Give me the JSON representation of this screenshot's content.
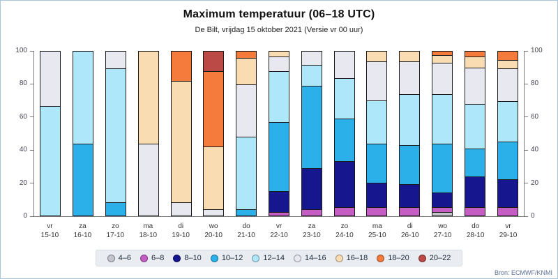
{
  "title": "Maximum temperatuur (06–18 UTC)",
  "subtitle": "De Bilt, vrijdag 15 oktober 2021 (Versie vr 00 uur)",
  "source": "Bron: ECMWF/KNMI",
  "chart_data": {
    "type": "bar",
    "stacked": true,
    "ylim": [
      0,
      100
    ],
    "yticks": [
      0,
      20,
      40,
      60,
      80,
      100
    ],
    "grid": false,
    "legend_position": "bottom",
    "bins": [
      {
        "label": "4–6",
        "color": "#c4c4cc"
      },
      {
        "label": "6–8",
        "color": "#c45ec4"
      },
      {
        "label": "8–10",
        "color": "#16168f"
      },
      {
        "label": "10–12",
        "color": "#2bb0ea"
      },
      {
        "label": "12–14",
        "color": "#aee7fa"
      },
      {
        "label": "14–16",
        "color": "#e8e8f0"
      },
      {
        "label": "16–18",
        "color": "#f9dcb2"
      },
      {
        "label": "18–20",
        "color": "#f47b3c"
      },
      {
        "label": "20–22",
        "color": "#bb4a47"
      }
    ],
    "bars": [
      {
        "day": "vr",
        "date": "15-10",
        "segments": [
          {
            "bin": "12–14",
            "value": 67
          },
          {
            "bin": "14–16",
            "value": 33
          }
        ]
      },
      {
        "day": "za",
        "date": "16-10",
        "segments": [
          {
            "bin": "10–12",
            "value": 44
          },
          {
            "bin": "12–14",
            "value": 56
          }
        ]
      },
      {
        "day": "zo",
        "date": "17-10",
        "segments": [
          {
            "bin": "10–12",
            "value": 8
          },
          {
            "bin": "12–14",
            "value": 82
          },
          {
            "bin": "14–16",
            "value": 10
          }
        ]
      },
      {
        "day": "ma",
        "date": "18-10",
        "segments": [
          {
            "bin": "14–16",
            "value": 44
          },
          {
            "bin": "16–18",
            "value": 56
          }
        ]
      },
      {
        "day": "di",
        "date": "19-10",
        "segments": [
          {
            "bin": "14–16",
            "value": 8
          },
          {
            "bin": "16–18",
            "value": 74
          },
          {
            "bin": "18–20",
            "value": 18
          }
        ]
      },
      {
        "day": "wo",
        "date": "20-10",
        "segments": [
          {
            "bin": "14–16",
            "value": 4
          },
          {
            "bin": "16–18",
            "value": 38
          },
          {
            "bin": "18–20",
            "value": 46
          },
          {
            "bin": "20–22",
            "value": 12
          }
        ]
      },
      {
        "day": "do",
        "date": "21-10",
        "segments": [
          {
            "bin": "10–12",
            "value": 4
          },
          {
            "bin": "12–14",
            "value": 44
          },
          {
            "bin": "14–16",
            "value": 32
          },
          {
            "bin": "16–18",
            "value": 16
          },
          {
            "bin": "18–20",
            "value": 4
          }
        ]
      },
      {
        "day": "vr",
        "date": "22-10",
        "segments": [
          {
            "bin": "6–8",
            "value": 2
          },
          {
            "bin": "8–10",
            "value": 13
          },
          {
            "bin": "10–12",
            "value": 42
          },
          {
            "bin": "12–14",
            "value": 31
          },
          {
            "bin": "14–16",
            "value": 9
          },
          {
            "bin": "16–18",
            "value": 3
          }
        ]
      },
      {
        "day": "za",
        "date": "23-10",
        "segments": [
          {
            "bin": "6–8",
            "value": 4
          },
          {
            "bin": "8–10",
            "value": 25
          },
          {
            "bin": "10–12",
            "value": 50
          },
          {
            "bin": "12–14",
            "value": 13
          },
          {
            "bin": "14–16",
            "value": 8
          }
        ]
      },
      {
        "day": "zo",
        "date": "24-10",
        "segments": [
          {
            "bin": "6–8",
            "value": 5
          },
          {
            "bin": "8–10",
            "value": 28
          },
          {
            "bin": "10–12",
            "value": 26
          },
          {
            "bin": "12–14",
            "value": 25
          },
          {
            "bin": "14–16",
            "value": 16
          }
        ]
      },
      {
        "day": "ma",
        "date": "25-10",
        "segments": [
          {
            "bin": "6–8",
            "value": 5
          },
          {
            "bin": "8–10",
            "value": 15
          },
          {
            "bin": "10–12",
            "value": 24
          },
          {
            "bin": "12–14",
            "value": 26
          },
          {
            "bin": "14–16",
            "value": 24
          },
          {
            "bin": "16–18",
            "value": 6
          }
        ]
      },
      {
        "day": "di",
        "date": "26-10",
        "segments": [
          {
            "bin": "6–8",
            "value": 5
          },
          {
            "bin": "8–10",
            "value": 14
          },
          {
            "bin": "10–12",
            "value": 24
          },
          {
            "bin": "12–14",
            "value": 31
          },
          {
            "bin": "14–16",
            "value": 20
          },
          {
            "bin": "16–18",
            "value": 6
          }
        ]
      },
      {
        "day": "wo",
        "date": "27-10",
        "segments": [
          {
            "bin": "4–6",
            "value": 2
          },
          {
            "bin": "6–8",
            "value": 3
          },
          {
            "bin": "8–10",
            "value": 9
          },
          {
            "bin": "10–12",
            "value": 30
          },
          {
            "bin": "12–14",
            "value": 30
          },
          {
            "bin": "14–16",
            "value": 19
          },
          {
            "bin": "16–18",
            "value": 5
          },
          {
            "bin": "18–20",
            "value": 2
          }
        ]
      },
      {
        "day": "do",
        "date": "28-10",
        "segments": [
          {
            "bin": "6–8",
            "value": 5
          },
          {
            "bin": "8–10",
            "value": 19
          },
          {
            "bin": "10–12",
            "value": 17
          },
          {
            "bin": "12–14",
            "value": 27
          },
          {
            "bin": "14–16",
            "value": 22
          },
          {
            "bin": "16–18",
            "value": 7
          },
          {
            "bin": "18–20",
            "value": 3
          }
        ]
      },
      {
        "day": "vr",
        "date": "29-10",
        "segments": [
          {
            "bin": "6–8",
            "value": 5
          },
          {
            "bin": "8–10",
            "value": 17
          },
          {
            "bin": "10–12",
            "value": 23
          },
          {
            "bin": "12–14",
            "value": 25
          },
          {
            "bin": "14–16",
            "value": 20
          },
          {
            "bin": "16–18",
            "value": 5
          },
          {
            "bin": "18–20",
            "value": 5
          }
        ]
      }
    ]
  }
}
